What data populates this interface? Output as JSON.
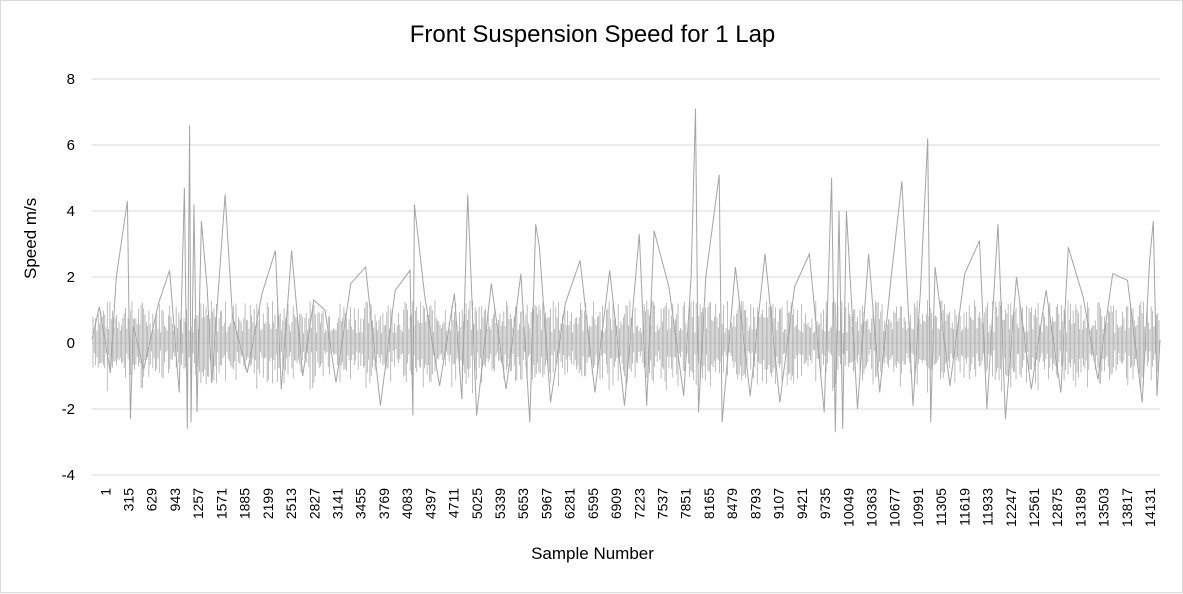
{
  "chart_data": {
    "type": "line",
    "title": "Front Suspension Speed for 1 Lap",
    "xlabel": "Sample Number",
    "ylabel": "Speed m/s",
    "ylim": [
      -4,
      8
    ],
    "yticks": [
      -4,
      -2,
      0,
      2,
      4,
      6,
      8
    ],
    "xticks": [
      "1",
      "315",
      "629",
      "943",
      "1257",
      "1571",
      "1885",
      "2199",
      "2513",
      "2827",
      "3141",
      "3455",
      "3769",
      "4083",
      "4397",
      "4711",
      "5025",
      "5339",
      "5653",
      "5967",
      "6281",
      "6595",
      "6909",
      "7223",
      "7537",
      "7851",
      "8165",
      "8479",
      "8793",
      "9107",
      "9421",
      "9735",
      "10049",
      "10363",
      "10677",
      "10991",
      "11305",
      "11619",
      "11933",
      "12247",
      "12561",
      "12875",
      "13189",
      "13503",
      "13817",
      "14131"
    ],
    "xlim": [
      1,
      14440
    ],
    "grid": true,
    "legend": "none",
    "series_color": "#a5a5a5",
    "series": [
      {
        "values_note": "",
        "x": [
          1,
          100,
          250,
          330,
          480,
          520,
          560,
          700,
          900,
          1050,
          1180,
          1250,
          1290,
          1320,
          1340,
          1380,
          1420,
          1480,
          1560,
          1620,
          1800,
          1900,
          2100,
          2300,
          2480,
          2560,
          2700,
          2850,
          3000,
          3150,
          3300,
          3500,
          3700,
          3900,
          4100,
          4300,
          4340,
          4360,
          4500,
          4700,
          4900,
          5000,
          5080,
          5200,
          5400,
          5600,
          5800,
          5920,
          6000,
          6050,
          6200,
          6400,
          6600,
          6800,
          7000,
          7200,
          7400,
          7500,
          7600,
          7800,
          8000,
          8100,
          8160,
          8200,
          8300,
          8480,
          8520,
          8700,
          8900,
          9100,
          9300,
          9500,
          9700,
          9900,
          10000,
          10050,
          10100,
          10150,
          10200,
          10350,
          10500,
          10650,
          10800,
          10950,
          11100,
          11200,
          11300,
          11340,
          11400,
          11600,
          11800,
          12000,
          12100,
          12250,
          12350,
          12500,
          12700,
          12900,
          13100,
          13200,
          13400,
          13600,
          13800,
          14000,
          14200,
          14300,
          14350,
          14400,
          14440
        ],
        "values": [
          0.1,
          1.1,
          -0.9,
          2.0,
          4.3,
          -2.3,
          0.5,
          -0.8,
          1.2,
          2.2,
          -1.5,
          4.7,
          -2.6,
          6.6,
          -2.4,
          4.2,
          -2.1,
          3.7,
          1.6,
          -1.2,
          4.5,
          0.8,
          -0.9,
          1.5,
          2.8,
          -1.4,
          2.8,
          -1.0,
          1.3,
          1.0,
          -1.2,
          1.8,
          2.3,
          -1.9,
          1.6,
          2.2,
          -2.2,
          4.2,
          1.4,
          -1.3,
          1.5,
          -1.7,
          4.5,
          -2.2,
          1.8,
          -1.4,
          2.1,
          -2.4,
          3.6,
          2.9,
          -1.8,
          1.2,
          2.5,
          -1.5,
          2.2,
          -1.9,
          3.3,
          -1.9,
          3.4,
          1.7,
          -1.6,
          2.0,
          7.1,
          -2.1,
          2.0,
          5.1,
          -2.4,
          2.3,
          -1.6,
          2.7,
          -1.8,
          1.7,
          2.7,
          -2.1,
          5.0,
          -2.7,
          4.0,
          -2.6,
          4.0,
          -2.0,
          2.7,
          -1.5,
          1.9,
          4.9,
          -1.9,
          1.5,
          6.2,
          -2.4,
          2.3,
          -1.3,
          2.1,
          3.1,
          -2.0,
          3.6,
          -2.3,
          2.0,
          -1.4,
          1.6,
          -1.5,
          2.9,
          1.4,
          -1.1,
          2.1,
          1.9,
          -1.8,
          2.5,
          3.7,
          -1.6,
          0.1
        ]
      }
    ]
  }
}
